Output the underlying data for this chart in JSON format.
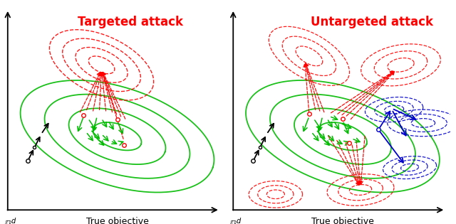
{
  "title_left": "Targeted attack",
  "title_right": "Untargeted attack",
  "xlabel": "True objective",
  "ylabel": "$\\mathbb{R}^d$",
  "bg_color": "#ffffff",
  "green_color": "#00bb00",
  "red_color": "#ff0000",
  "blue_color": "#0000cc",
  "black_color": "#000000",
  "gray_color": "#888888"
}
